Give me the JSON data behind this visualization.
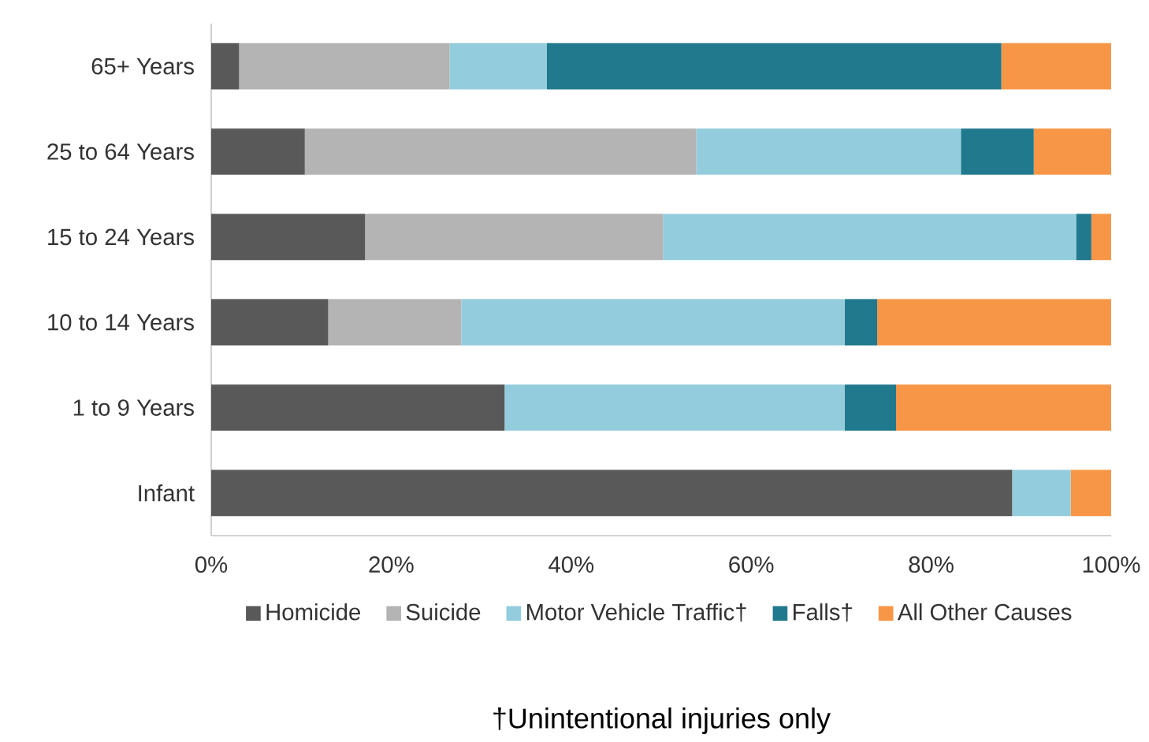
{
  "chart_data": {
    "type": "bar",
    "orientation": "horizontal",
    "stacked": true,
    "categories": [
      "65+ Years",
      "25 to 64 Years",
      "15 to 24 Years",
      "10 to 14 Years",
      "1 to 9 Years",
      "Infant"
    ],
    "series": [
      {
        "name": "Homicide",
        "color": "#595959",
        "values": [
          3.1,
          10.4,
          17.1,
          13.0,
          32.6,
          89.0
        ]
      },
      {
        "name": "Suicide",
        "color": "#b4b4b4",
        "values": [
          23.4,
          43.5,
          33.1,
          14.8,
          0,
          0
        ]
      },
      {
        "name": "Motor Vehicle Traffic†",
        "color": "#93cddd",
        "values": [
          10.8,
          29.4,
          45.9,
          42.6,
          37.8,
          6.5
        ]
      },
      {
        "name": "Falls†",
        "color": "#21798e",
        "values": [
          50.5,
          8.1,
          1.7,
          3.6,
          5.7,
          0
        ]
      },
      {
        "name": "All Other Causes",
        "color": "#f79646",
        "values": [
          12.2,
          8.6,
          2.2,
          26.0,
          23.9,
          4.5
        ]
      }
    ],
    "xlim": [
      0,
      100
    ],
    "xticks": [
      {
        "value": 0,
        "label": "0%"
      },
      {
        "value": 20,
        "label": "20%"
      },
      {
        "value": 40,
        "label": "40%"
      },
      {
        "value": 60,
        "label": "60%"
      },
      {
        "value": 80,
        "label": "80%"
      },
      {
        "value": 100,
        "label": "100%"
      }
    ],
    "legend": "bottom",
    "grid": false,
    "annotations": [
      "†Unintentional injuries only"
    ]
  }
}
